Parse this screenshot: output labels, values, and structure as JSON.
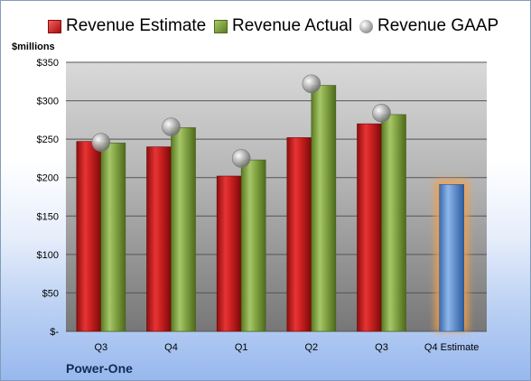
{
  "company_label": "Power-One",
  "chart_data": {
    "type": "bar",
    "ylabel": "$millions",
    "ylim": [
      0,
      350
    ],
    "yticks": [
      0,
      50,
      100,
      150,
      200,
      250,
      300,
      350
    ],
    "ytick_labels": [
      "$-",
      "$50",
      "$100",
      "$150",
      "$200",
      "$250",
      "$300",
      "$350"
    ],
    "categories": [
      "Q3",
      "Q4",
      "Q1",
      "Q2",
      "Q3",
      "Q4 Estimate"
    ],
    "grid": true,
    "legend_position": "top",
    "series": [
      {
        "name": "Revenue Estimate",
        "kind": "bar",
        "color": "#c81e1e",
        "values": [
          247,
          240,
          202,
          252,
          270,
          null
        ]
      },
      {
        "name": "Revenue Actual",
        "kind": "bar",
        "color": "#7a9a3a",
        "values": [
          245,
          265,
          223,
          320,
          282,
          null
        ]
      },
      {
        "name": "Revenue GAAP",
        "kind": "marker",
        "color": "#a0a0a0",
        "values": [
          246,
          266,
          225,
          322,
          284,
          null
        ]
      },
      {
        "name": "",
        "kind": "bar",
        "color": "#5b8fd0",
        "highlight": "#f5a04a",
        "values": [
          null,
          null,
          null,
          null,
          null,
          191
        ]
      }
    ]
  }
}
